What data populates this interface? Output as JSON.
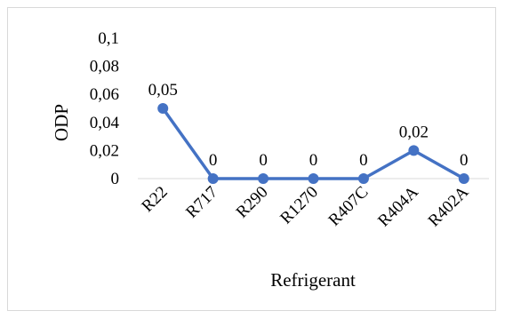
{
  "chart_data": {
    "type": "line",
    "title": "",
    "xlabel": "Refrigerant",
    "ylabel": "ODP",
    "categories": [
      "R22",
      "R717",
      "R290",
      "R1270",
      "R407C",
      "R404A",
      "R402A"
    ],
    "series": [
      {
        "values": [
          0.05,
          0,
          0,
          0,
          0,
          0.02,
          0
        ],
        "data_labels": [
          "0,05",
          "0",
          "0",
          "0",
          "0",
          "0,02",
          "0"
        ]
      }
    ],
    "y_ticks": [
      0,
      0.02,
      0.04,
      0.06,
      0.08,
      0.1
    ],
    "y_tick_labels": [
      "0",
      "0,02",
      "0,04",
      "0,06",
      "0,08",
      "0,1"
    ],
    "ylim": [
      0,
      0.1
    ],
    "grid": false,
    "legend": "none",
    "colors": {
      "line": "#4472c4",
      "axis": "#d9d9d9",
      "border": "#d9d9d9"
    }
  }
}
